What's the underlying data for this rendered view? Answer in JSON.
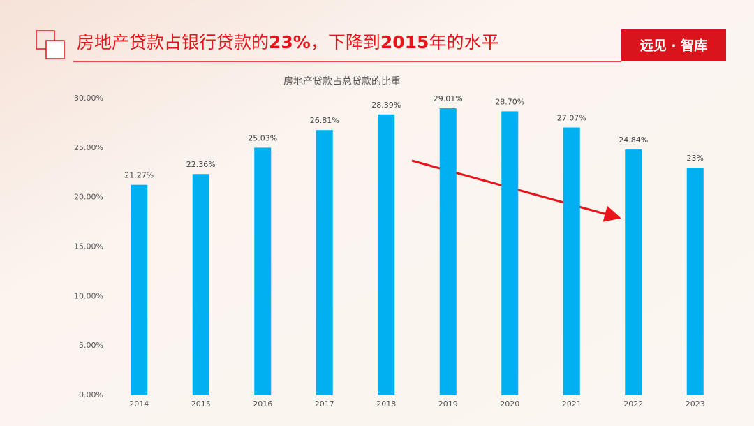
{
  "header": {
    "title": [
      "房地产贷款占银行贷款的",
      "23%",
      "，下降到",
      "2015",
      "年的水平"
    ],
    "logo": "远见 · 智库"
  },
  "chart_data": {
    "type": "bar",
    "title": "房地产贷款占总贷款的比重",
    "categories": [
      "2014",
      "2015",
      "2016",
      "2017",
      "2018",
      "2019",
      "2020",
      "2021",
      "2022",
      "2023"
    ],
    "values": [
      21.27,
      22.36,
      25.03,
      26.81,
      28.39,
      29.01,
      28.7,
      27.07,
      24.84,
      23
    ],
    "value_labels": [
      "21.27%",
      "22.36%",
      "25.03%",
      "26.81%",
      "28.39%",
      "29.01%",
      "28.70%",
      "27.07%",
      "24.84%",
      "23%"
    ],
    "color": "#00b0f0",
    "ylim": [
      0,
      30
    ],
    "yticks": [
      {
        "value": 0,
        "label": "0.00%"
      },
      {
        "value": 5,
        "label": "5.00%"
      },
      {
        "value": 10,
        "label": "10.00%"
      },
      {
        "value": 15,
        "label": "15.00%"
      },
      {
        "value": 20,
        "label": "20.00%"
      },
      {
        "value": 25,
        "label": "25.00%"
      },
      {
        "value": 30,
        "label": "30.00%"
      }
    ],
    "grid": false
  }
}
